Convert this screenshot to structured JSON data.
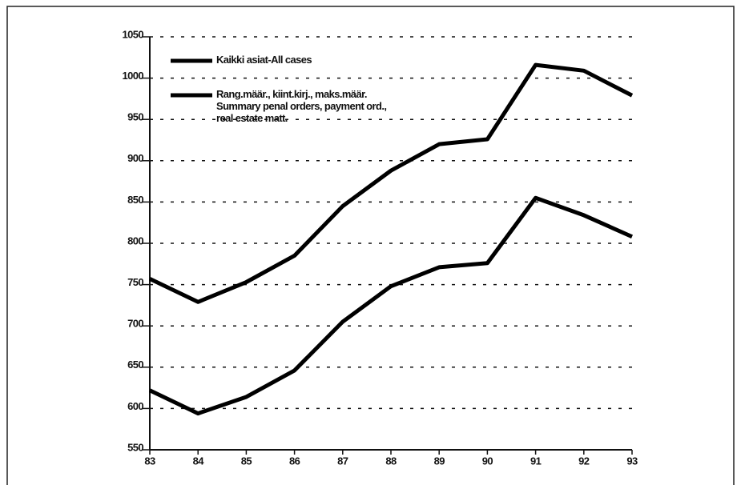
{
  "chart_data": {
    "type": "line",
    "x": [
      83,
      84,
      85,
      86,
      87,
      88,
      89,
      90,
      91,
      92,
      93
    ],
    "series": [
      {
        "name": "Kaikki asiat-All cases",
        "color": "#000000",
        "values": [
          757,
          729,
          753,
          785,
          845,
          888,
          920,
          926,
          1016,
          1009,
          979
        ]
      },
      {
        "name": "Rang.määr., kiint.kirj., maks.määr.\nSummary penal orders, payment ord.,\nreal estate matt.",
        "color": "#000000",
        "values": [
          622,
          594,
          614,
          646,
          705,
          748,
          771,
          776,
          855,
          834,
          808
        ]
      }
    ],
    "xlim": [
      83,
      93
    ],
    "xticks": [
      83,
      84,
      85,
      86,
      87,
      88,
      89,
      90,
      91,
      92,
      93
    ],
    "ylim": [
      550,
      1050
    ],
    "yticks": [
      550,
      600,
      650,
      700,
      750,
      800,
      850,
      900,
      950,
      1000,
      1050
    ],
    "grid": true,
    "legend": "upper left"
  }
}
